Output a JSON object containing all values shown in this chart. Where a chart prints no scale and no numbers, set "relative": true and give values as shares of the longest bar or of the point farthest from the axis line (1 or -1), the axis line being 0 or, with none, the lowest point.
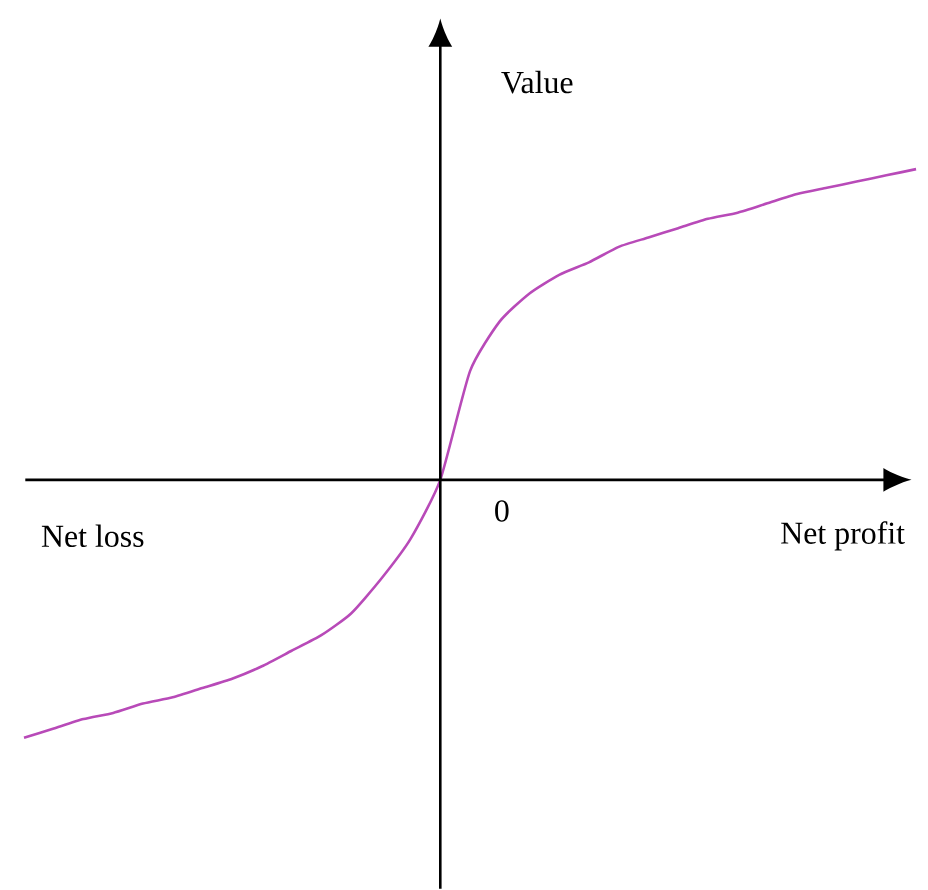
{
  "chart_data": {
    "type": "line",
    "relative": true,
    "ylabel": "Value",
    "xlabel": "Net profit",
    "annotations": [
      "Net loss",
      "0"
    ],
    "categories": [
      null,
      null,
      null,
      null,
      null,
      null,
      null,
      null,
      null,
      null,
      null,
      null,
      null,
      null,
      null,
      null,
      null,
      null,
      null,
      null,
      null,
      null,
      null,
      null,
      null,
      null,
      null,
      null,
      null,
      null,
      null
    ],
    "series": [
      {
        "color": "#b84ab8",
        "values": [
          -0.83,
          -0.8,
          -0.77,
          -0.75,
          -0.72,
          -0.7,
          -0.67,
          -0.64,
          -0.6,
          -0.55,
          -0.5,
          -0.43,
          -0.32,
          -0.19,
          0,
          0.35,
          0.51,
          0.6,
          0.66,
          0.7,
          0.75,
          0.78,
          0.81,
          0.84,
          0.86,
          0.89,
          0.92,
          0.94,
          0.96,
          0.98,
          1
        ]
      }
    ]
  }
}
